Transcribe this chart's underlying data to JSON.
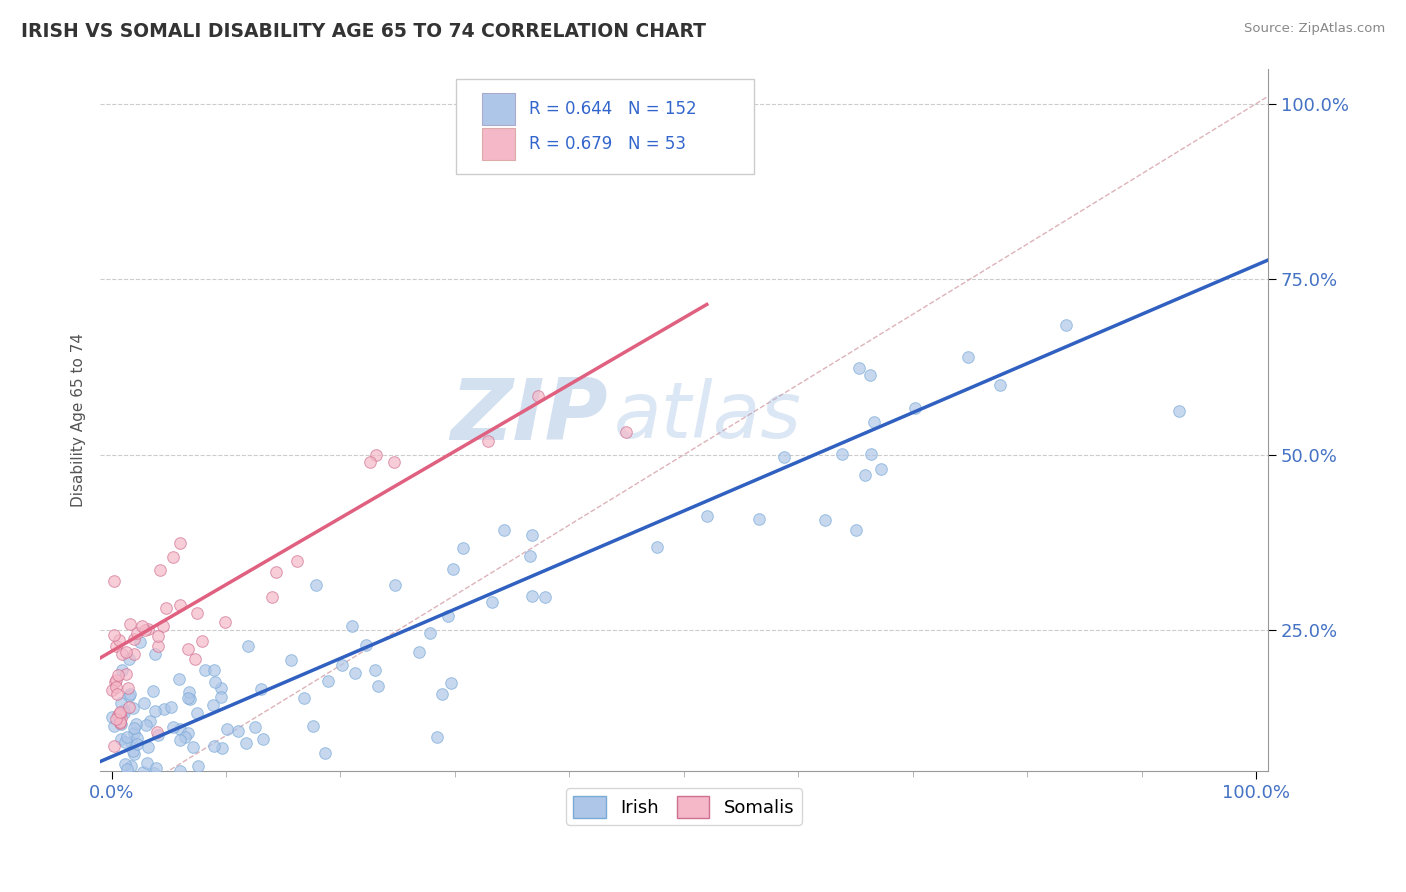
{
  "title": "IRISH VS SOMALI DISABILITY AGE 65 TO 74 CORRELATION CHART",
  "source": "Source: ZipAtlas.com",
  "ylabel": "Disability Age 65 to 74",
  "axis_label_color": "#4472c4",
  "background_color": "#ffffff",
  "irish_scatter_color": "#aec6e8",
  "somali_scatter_color": "#f4b8c8",
  "irish_line_color": "#3060c0",
  "somali_line_color": "#e06080",
  "diag_line_color": "#d0a0a0",
  "irish_R": 0.644,
  "irish_N": 152,
  "somali_R": 0.679,
  "somali_N": 53,
  "watermark_zip": "ZIP",
  "watermark_atlas": "atlas",
  "xlim": [
    0.0,
    1.0
  ],
  "ylim": [
    0.05,
    1.05
  ],
  "yticks": [
    0.25,
    0.5,
    0.75,
    1.0
  ],
  "ytick_labels": [
    "25.0%",
    "50.0%",
    "75.0%",
    "100.0%"
  ],
  "xtick_labels": [
    "0.0%",
    "100.0%"
  ]
}
